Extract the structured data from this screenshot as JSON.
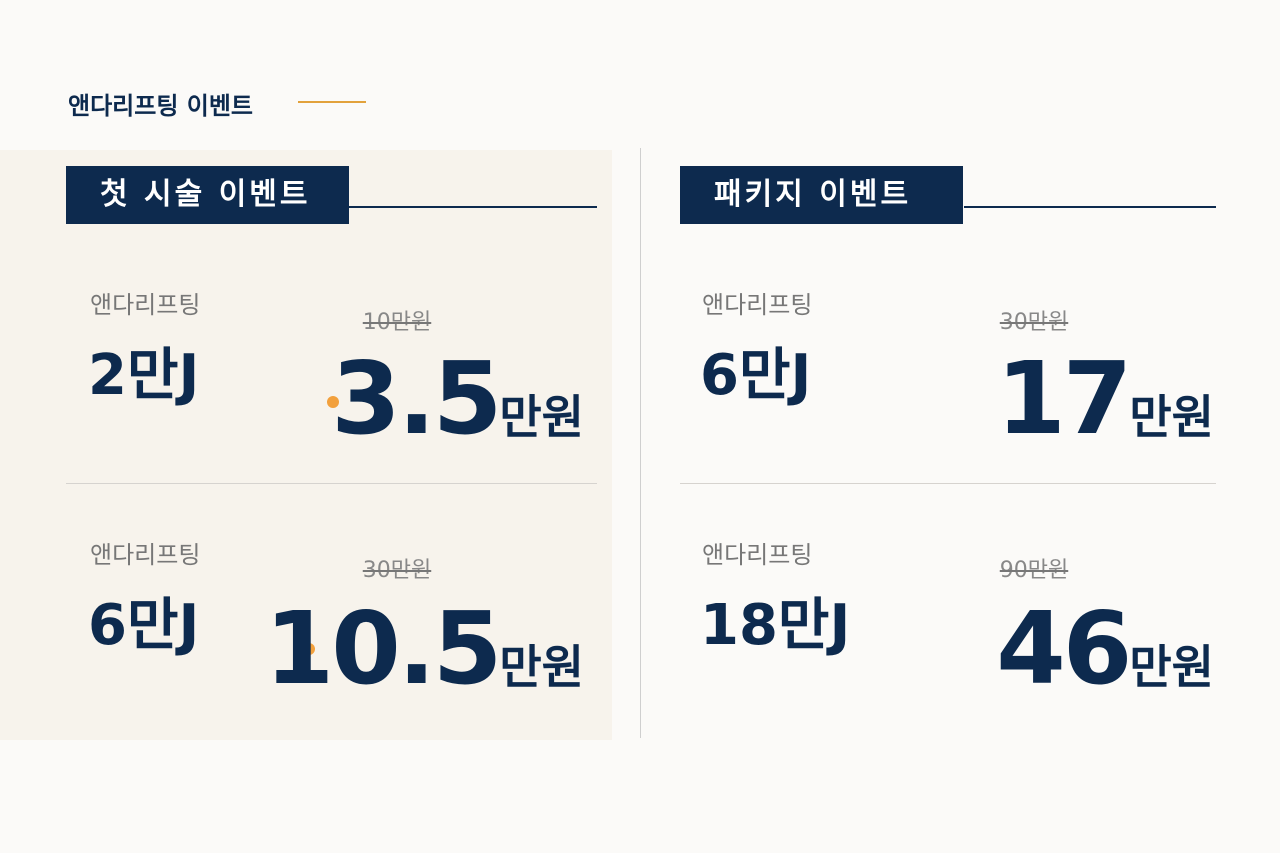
{
  "header": {
    "title": "앤다리프팅 이벤트"
  },
  "sections": [
    {
      "title": "첫 시술 이벤트",
      "items": [
        {
          "label": "앤다리프팅",
          "amount": "2만J",
          "original_price": "10만원",
          "price": "3.5",
          "unit": "만원"
        },
        {
          "label": "앤다리프팅",
          "amount": "6만J",
          "original_price": "30만원",
          "price": "10.5",
          "unit": "만원"
        }
      ]
    },
    {
      "title": "패키지 이벤트",
      "items": [
        {
          "label": "앤다리프팅",
          "amount": "6만J",
          "original_price": "30만원",
          "price": "17",
          "unit": "만원"
        },
        {
          "label": "앤다리프팅",
          "amount": "18만J",
          "original_price": "90만원",
          "price": "46",
          "unit": "만원"
        }
      ]
    }
  ]
}
